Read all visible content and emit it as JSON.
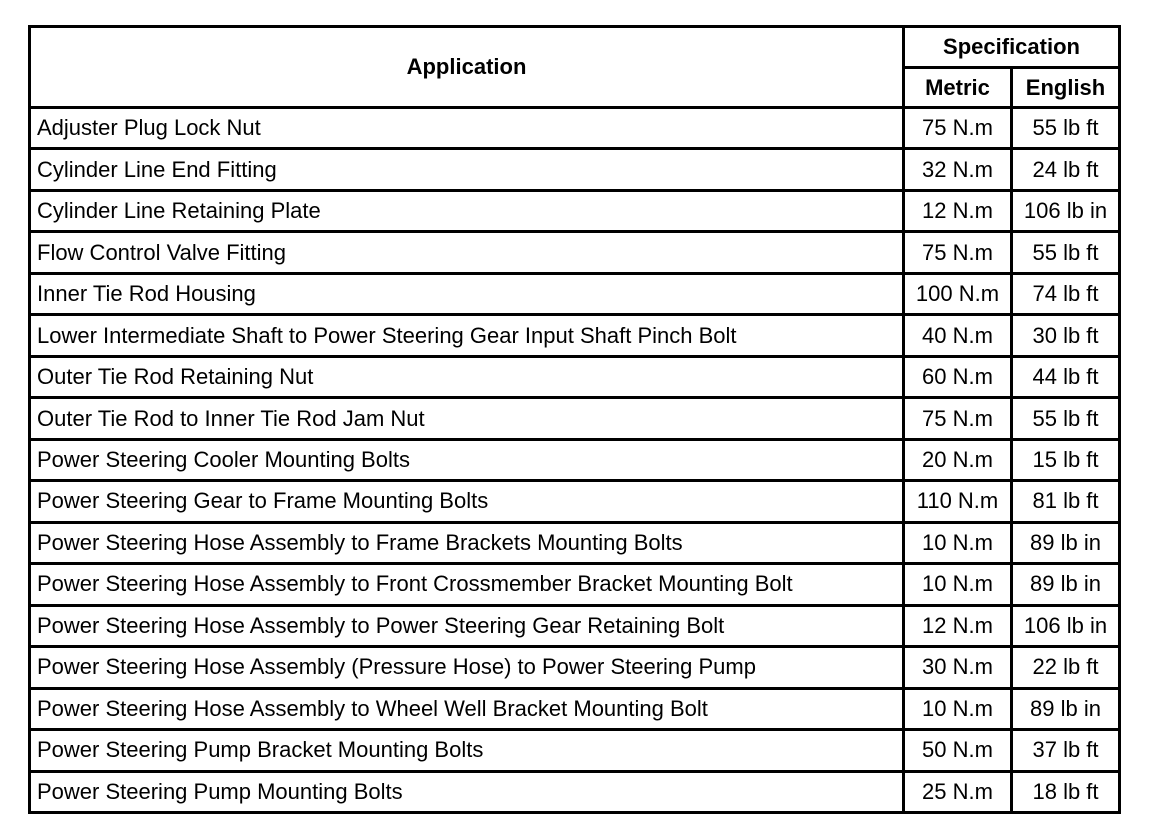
{
  "header": {
    "application": "Application",
    "specification": "Specification",
    "metric": "Metric",
    "english": "English"
  },
  "rows": [
    {
      "application": "Adjuster Plug Lock Nut",
      "metric": "75 N.m",
      "english": "55 lb ft"
    },
    {
      "application": "Cylinder Line End Fitting",
      "metric": "32 N.m",
      "english": "24 lb ft"
    },
    {
      "application": "Cylinder Line Retaining Plate",
      "metric": "12 N.m",
      "english": "106 lb in"
    },
    {
      "application": "Flow Control Valve Fitting",
      "metric": "75 N.m",
      "english": "55 lb ft"
    },
    {
      "application": "Inner Tie Rod Housing",
      "metric": "100 N.m",
      "english": "74 lb ft"
    },
    {
      "application": "Lower Intermediate Shaft to Power Steering Gear Input Shaft Pinch Bolt",
      "metric": "40 N.m",
      "english": "30 lb ft"
    },
    {
      "application": "Outer Tie Rod Retaining Nut",
      "metric": "60 N.m",
      "english": "44 lb ft"
    },
    {
      "application": "Outer Tie Rod to Inner Tie Rod Jam Nut",
      "metric": "75 N.m",
      "english": "55 lb ft"
    },
    {
      "application": "Power Steering Cooler Mounting Bolts",
      "metric": "20 N.m",
      "english": "15 lb ft"
    },
    {
      "application": "Power Steering Gear to Frame Mounting Bolts",
      "metric": "110 N.m",
      "english": "81 lb ft"
    },
    {
      "application": "Power Steering Hose Assembly to Frame Brackets Mounting Bolts",
      "metric": "10 N.m",
      "english": "89 lb in"
    },
    {
      "application": "Power Steering Hose Assembly to Front Crossmember Bracket Mounting Bolt",
      "metric": "10 N.m",
      "english": "89 lb in"
    },
    {
      "application": "Power Steering Hose Assembly to Power Steering Gear Retaining Bolt",
      "metric": "12 N.m",
      "english": "106 lb in"
    },
    {
      "application": "Power Steering Hose Assembly (Pressure Hose) to Power Steering Pump",
      "metric": "30 N.m",
      "english": "22 lb ft"
    },
    {
      "application": "Power Steering Hose Assembly to Wheel Well Bracket Mounting Bolt",
      "metric": "10 N.m",
      "english": "89 lb in"
    },
    {
      "application": "Power Steering Pump Bracket Mounting Bolts",
      "metric": "50 N.m",
      "english": "37 lb ft"
    },
    {
      "application": "Power Steering Pump Mounting Bolts",
      "metric": "25 N.m",
      "english": "18 lb ft"
    }
  ]
}
